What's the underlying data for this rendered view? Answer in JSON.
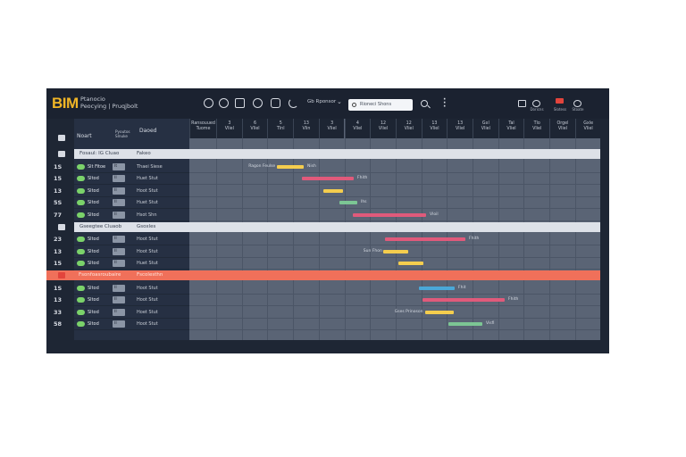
{
  "header": {
    "logo": "BIM",
    "title_line1": "Ptanocio",
    "title_line2": "Peocying | Pruqjbolt",
    "filter_label": "Gb Rponsor",
    "search_placeholder": "Rioneci Shons"
  },
  "right_icons": [
    {
      "name": "grid-icon",
      "label": ""
    },
    {
      "name": "settings-icon",
      "label": "Doricns"
    },
    {
      "name": "alert-icon",
      "label": "Slotess"
    },
    {
      "name": "user-icon",
      "label": "Stoate"
    }
  ],
  "columns": {
    "task": "Noart",
    "task_sub": "Pyoutos\nSlnuke",
    "resource": "Daoed",
    "first_day": "Ransouued\nTuome"
  },
  "days": [
    {
      "n": "3",
      "d": "Vliel"
    },
    {
      "n": "6",
      "d": "Vliel"
    },
    {
      "n": "5",
      "d": "Tlnl"
    },
    {
      "n": "13",
      "d": "Vlin"
    },
    {
      "n": "3",
      "d": "Vliel"
    },
    {
      "n": "4",
      "d": "Vliel"
    },
    {
      "n": "12",
      "d": "Vliel"
    },
    {
      "n": "12",
      "d": "Vliel"
    },
    {
      "n": "13",
      "d": "Vliel"
    },
    {
      "n": "13",
      "d": "Vliel"
    },
    {
      "n": "Gxl",
      "d": "Vliel"
    },
    {
      "n": "Tal",
      "d": "Vliel"
    },
    {
      "n": "Tlo",
      "d": "Vliel"
    },
    {
      "n": "Orgel",
      "d": "Vliel"
    },
    {
      "n": "Gxle",
      "d": "Vliel"
    }
  ],
  "groups": [
    {
      "label": "Fosaul: IG Cluao",
      "resource": "Fakeo"
    },
    {
      "label": "Gseegtee Cluaob",
      "resource": "Gsoxles"
    }
  ],
  "banner": {
    "label": "Fsonfoasroubaire",
    "resource": "Fscolesthn"
  },
  "row_numbers": [
    "",
    "1S",
    "15",
    "13",
    "5S",
    "77",
    "",
    "23",
    "13",
    "15",
    "",
    "1S",
    "13",
    "33",
    "58"
  ],
  "tasks": [
    {
      "label": "Slt Fitoe",
      "chip": "It",
      "resource": "Thaei Siese",
      "bar_label": "Ragon Feulse",
      "bar_end": "Nish",
      "color": "#f4cd4e"
    },
    {
      "label": "Sltod",
      "chip": "II",
      "resource": "Huet Stut",
      "bar_label": "",
      "bar_end": "Fhith",
      "color": "#e05a7b"
    },
    {
      "label": "Sltod",
      "chip": "II",
      "resource": "Hoot Stut",
      "bar_label": "",
      "bar_end": "",
      "color": "#f4cd4e"
    },
    {
      "label": "Sltod",
      "chip": "II",
      "resource": "Huet Stut",
      "bar_label": "",
      "bar_end": "Ihs",
      "color": "#7cc694"
    },
    {
      "label": "Sltod",
      "chip": "II",
      "resource": "Hsot Shn",
      "bar_label": "",
      "bar_end": "Vloil",
      "color": "#e05a7b"
    },
    {
      "label": "Sltod",
      "chip": "II",
      "resource": "Hoot Stut",
      "bar_label": "",
      "bar_end": "Fhith",
      "color": "#e05a7b"
    },
    {
      "label": "Sltod",
      "chip": "II",
      "resource": "Hoot Stut",
      "bar_label": "Sun Fhon",
      "bar_end": "",
      "color": "#f4cd4e"
    },
    {
      "label": "Sltod",
      "chip": "II",
      "resource": "Huet Stut",
      "bar_label": "",
      "bar_end": "",
      "color": "#f4cd4e"
    },
    {
      "label": "Sltod",
      "chip": "II",
      "resource": "Hoot Stut",
      "bar_label": "",
      "bar_end": "Fhit",
      "color": "#4aa8d8"
    },
    {
      "label": "Sltod",
      "chip": "II",
      "resource": "Hoot Stut",
      "bar_label": "",
      "bar_end": "Fhith",
      "color": "#e05a7b"
    },
    {
      "label": "Sltod",
      "chip": "II",
      "resource": "Hoet Stut",
      "bar_label": "Gses Prinoson",
      "bar_end": "",
      "color": "#f4cd4e"
    },
    {
      "label": "Sltod",
      "chip": "II",
      "resource": "Hoot Stut",
      "bar_label": "",
      "bar_end": "Visfi",
      "color": "#7cc694"
    },
    {
      "label": "Sltod",
      "chip": "II",
      "resource": "Hoot Stut",
      "bar_label": "",
      "bar_end": "Fhith",
      "color": "#f4cd4e"
    },
    {
      "label": "Sltod",
      "chip": "II",
      "resource": "Hoot Stut",
      "bar_label": "",
      "bar_end": "",
      "color": "#7cc694"
    }
  ],
  "colors": {
    "background": "#1e2634",
    "timeline": "#5a6475",
    "banner": "#f0705a",
    "accent": "#f0b526"
  }
}
